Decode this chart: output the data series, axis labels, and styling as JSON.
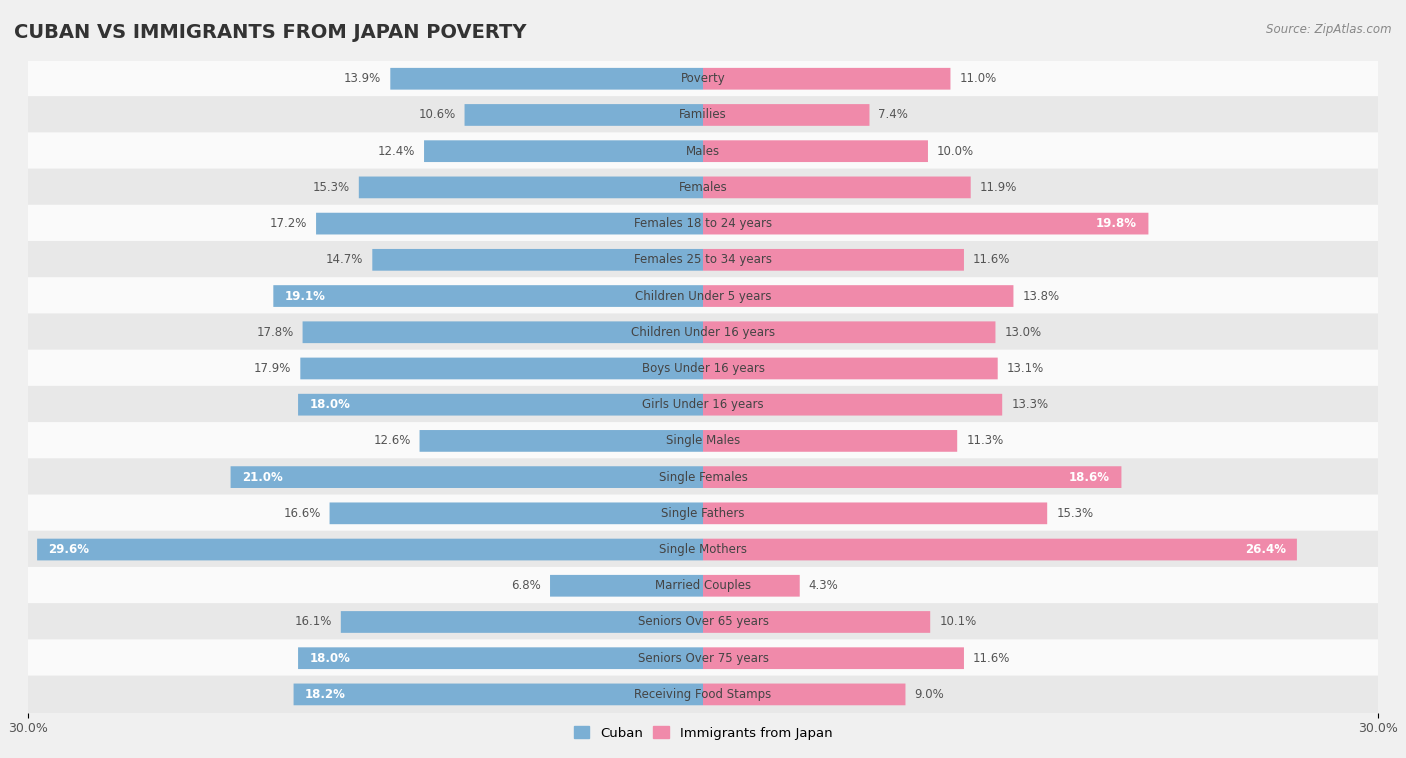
{
  "title": "CUBAN VS IMMIGRANTS FROM JAPAN POVERTY",
  "source": "Source: ZipAtlas.com",
  "categories": [
    "Poverty",
    "Families",
    "Males",
    "Females",
    "Females 18 to 24 years",
    "Females 25 to 34 years",
    "Children Under 5 years",
    "Children Under 16 years",
    "Boys Under 16 years",
    "Girls Under 16 years",
    "Single Males",
    "Single Females",
    "Single Fathers",
    "Single Mothers",
    "Married Couples",
    "Seniors Over 65 years",
    "Seniors Over 75 years",
    "Receiving Food Stamps"
  ],
  "cuban": [
    13.9,
    10.6,
    12.4,
    15.3,
    17.2,
    14.7,
    19.1,
    17.8,
    17.9,
    18.0,
    12.6,
    21.0,
    16.6,
    29.6,
    6.8,
    16.1,
    18.0,
    18.2
  ],
  "japan": [
    11.0,
    7.4,
    10.0,
    11.9,
    19.8,
    11.6,
    13.8,
    13.0,
    13.1,
    13.3,
    11.3,
    18.6,
    15.3,
    26.4,
    4.3,
    10.1,
    11.6,
    9.0
  ],
  "cuban_color": "#7bafd4",
  "japan_color": "#f08aaa",
  "cuban_label": "Cuban",
  "japan_label": "Immigrants from Japan",
  "background_color": "#f0f0f0",
  "row_bg_light": "#fafafa",
  "row_bg_dark": "#e8e8e8",
  "max_val": 30.0,
  "bar_height": 0.6,
  "title_fontsize": 14,
  "label_fontsize": 8.5,
  "value_fontsize": 8.5,
  "inside_threshold": 18.0
}
